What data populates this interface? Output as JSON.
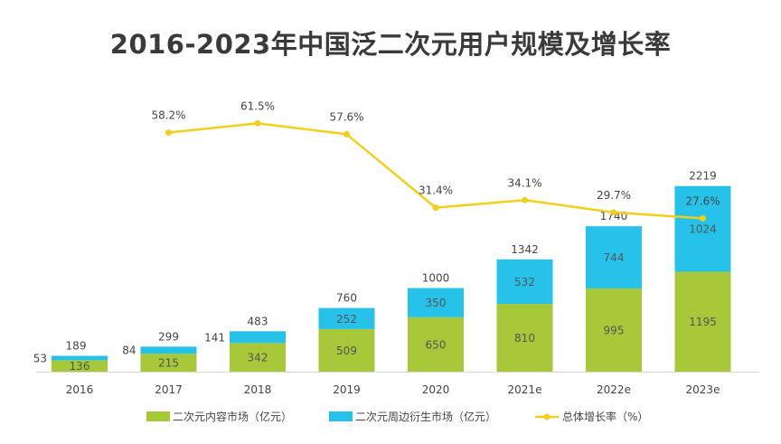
{
  "title": "2016-2023年中国泛二次元用户规模及增长率",
  "chart_data": {
    "type": "bar",
    "stacked": true,
    "categories": [
      "2016",
      "2017",
      "2018",
      "2019",
      "2020",
      "2021e",
      "2022e",
      "2023e"
    ],
    "series": [
      {
        "name": "二次元内容市场（亿元）",
        "values": [
          136,
          215,
          342,
          509,
          650,
          810,
          995,
          1195
        ],
        "color": "#a6c839"
      },
      {
        "name": "二次元周边衍生市场（亿元）",
        "values": [
          53,
          84,
          141,
          252,
          350,
          532,
          744,
          1024
        ],
        "color": "#26c2ea"
      }
    ],
    "totals": [
      189,
      299,
      483,
      760,
      1000,
      1342,
      1740,
      2219
    ],
    "line_series": {
      "name": "总体增长率（%）",
      "values": [
        null,
        58.2,
        61.5,
        57.6,
        31.4,
        34.1,
        29.7,
        27.6
      ],
      "labels": [
        "",
        "58.2%",
        "61.5%",
        "57.6%",
        "31.4%",
        "34.1%",
        "29.7%",
        "27.6%"
      ],
      "color": "#f2cf1a"
    },
    "legend_position": "bottom",
    "grid": false
  }
}
